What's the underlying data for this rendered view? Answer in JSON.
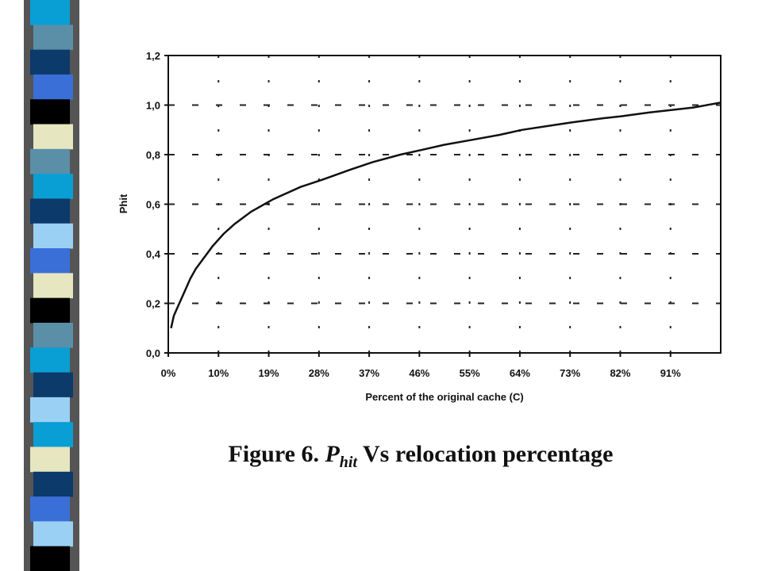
{
  "decoration": {
    "sidebar_colors": [
      "#0a9fd4",
      "#5b8fa8",
      "#0b3a6b",
      "#3a6fd8",
      "#000000",
      "#e6e6c0",
      "#5b8fa8",
      "#0a9fd4",
      "#0b3a6b",
      "#9bd0f5",
      "#3a6fd8",
      "#e6e6c0",
      "#000000",
      "#5b8fa8",
      "#0a9fd4",
      "#0b3a6b",
      "#9bd0f5",
      "#0a9fd4",
      "#e6e6c0",
      "#0b3a6b",
      "#3a6fd8",
      "#9bd0f5",
      "#000000"
    ]
  },
  "caption": {
    "prefix": "Figure 6. ",
    "symbol": "P",
    "subscript": "hit",
    "suffix": " Vs relocation percentage"
  },
  "chart_data": {
    "type": "line",
    "xlabel": "Percent of the original cache (C)",
    "ylabel": "Phit",
    "x_tick_labels": [
      "0%",
      "10%",
      "19%",
      "28%",
      "37%",
      "46%",
      "55%",
      "64%",
      "73%",
      "82%",
      "91%"
    ],
    "y_tick_labels": [
      "0,0",
      "0,2",
      "0,4",
      "0,6",
      "0,8",
      "1,0",
      "1,2"
    ],
    "xlim": [
      0,
      100
    ],
    "ylim": [
      0,
      1.2
    ],
    "grid": true,
    "series": [
      {
        "x": [
          0.5,
          1,
          2,
          3,
          4,
          5,
          6,
          8,
          10,
          12,
          15,
          19,
          24,
          28,
          33,
          37,
          42,
          46,
          50,
          55,
          60,
          64,
          70,
          73,
          78,
          82,
          87,
          91,
          95,
          100
        ],
        "values": [
          0.1,
          0.15,
          0.2,
          0.25,
          0.3,
          0.34,
          0.37,
          0.43,
          0.48,
          0.52,
          0.57,
          0.62,
          0.67,
          0.7,
          0.74,
          0.77,
          0.8,
          0.82,
          0.84,
          0.86,
          0.88,
          0.9,
          0.92,
          0.93,
          0.945,
          0.955,
          0.97,
          0.98,
          0.99,
          1.01
        ]
      }
    ]
  }
}
